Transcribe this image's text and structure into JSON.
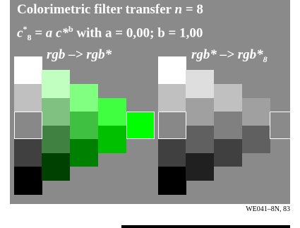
{
  "title_line1": "Colorimetric filter transfer",
  "title_line1_var": "n",
  "title_line1_val": "= 8",
  "title_line2_c": "c",
  "title_line2_star": "*",
  "title_line2_sub": "8",
  "title_line2_mid": "= a c*",
  "title_line2_exp": "b",
  "title_line2_rest": "with a = 0,00; b = 1,00",
  "label_left": "rgb –> rgb*",
  "label_right_main": "rgb* –> rgb*",
  "label_right_sub": "8",
  "footer": "WE041–8N, 83",
  "colors": {
    "panel": "#8a8a8a",
    "left_gray": [
      "#ffffff",
      "#c0c0c0",
      "#888888",
      "#404040",
      "#000000"
    ],
    "green": [
      "#c0ffc0",
      "#80c080",
      "#408040",
      "#004000",
      "#80ff80",
      "#40c040",
      "#008000",
      "#40ff40",
      "#00c000",
      "#00ff00"
    ],
    "right_gray": [
      "#ffffff",
      "#c0c0c0",
      "#888888",
      "#404040",
      "#000000",
      "#dedede",
      "#a0a0a0",
      "#606060",
      "#202020",
      "#c0c0c0",
      "#808080",
      "#404040",
      "#a0a0a0",
      "#606060"
    ]
  }
}
